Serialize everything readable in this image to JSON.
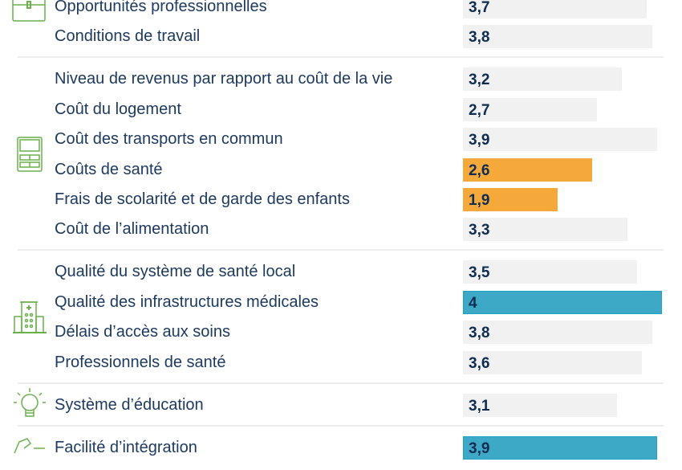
{
  "chart_data": {
    "type": "bar",
    "orientation": "horizontal",
    "xlim": [
      0,
      4
    ],
    "grid": false,
    "colors": {
      "default": "#f1f1f1",
      "low": "#f5a93a",
      "high": "#3ea9c6",
      "text": "#1d3a60",
      "icon": "#6ab04c"
    },
    "groups": [
      {
        "icon": "briefcase-icon",
        "items": [
          {
            "label": "Opportunités professionnelles",
            "value": 3.7,
            "display": "3,7",
            "highlight": "default"
          },
          {
            "label": "Conditions de travail",
            "value": 3.8,
            "display": "3,8",
            "highlight": "default"
          }
        ]
      },
      {
        "icon": "calculator-icon",
        "items": [
          {
            "label": "Niveau de revenus par rapport au coût de la vie",
            "value": 3.2,
            "display": "3,2",
            "highlight": "default"
          },
          {
            "label": "Coût du logement",
            "value": 2.7,
            "display": "2,7",
            "highlight": "default"
          },
          {
            "label": "Coût des transports en commun",
            "value": 3.9,
            "display": "3,9",
            "highlight": "default"
          },
          {
            "label": "Coûts de santé",
            "value": 2.6,
            "display": "2,6",
            "highlight": "low"
          },
          {
            "label": "Frais de scolarité et de garde des enfants",
            "value": 1.9,
            "display": "1,9",
            "highlight": "low"
          },
          {
            "label": "Coût de l’alimentation",
            "value": 3.3,
            "display": "3,3",
            "highlight": "default"
          }
        ]
      },
      {
        "icon": "hospital-icon",
        "items": [
          {
            "label": "Qualité du système de santé local",
            "value": 3.5,
            "display": "3,5",
            "highlight": "default"
          },
          {
            "label": "Qualité des infrastructures médicales",
            "value": 4.0,
            "display": "4",
            "highlight": "high"
          },
          {
            "label": "Délais d’accès aux soins",
            "value": 3.8,
            "display": "3,8",
            "highlight": "default"
          },
          {
            "label": "Professionnels de santé",
            "value": 3.6,
            "display": "3,6",
            "highlight": "default"
          }
        ]
      },
      {
        "icon": "lightbulb-icon",
        "items": [
          {
            "label": "Système d’éducation",
            "value": 3.1,
            "display": "3,1",
            "highlight": "default"
          }
        ]
      },
      {
        "icon": "integration-icon",
        "items": [
          {
            "label": "Facilité d’intégration",
            "value": 3.9,
            "display": "3,9",
            "highlight": "high"
          }
        ]
      }
    ]
  }
}
